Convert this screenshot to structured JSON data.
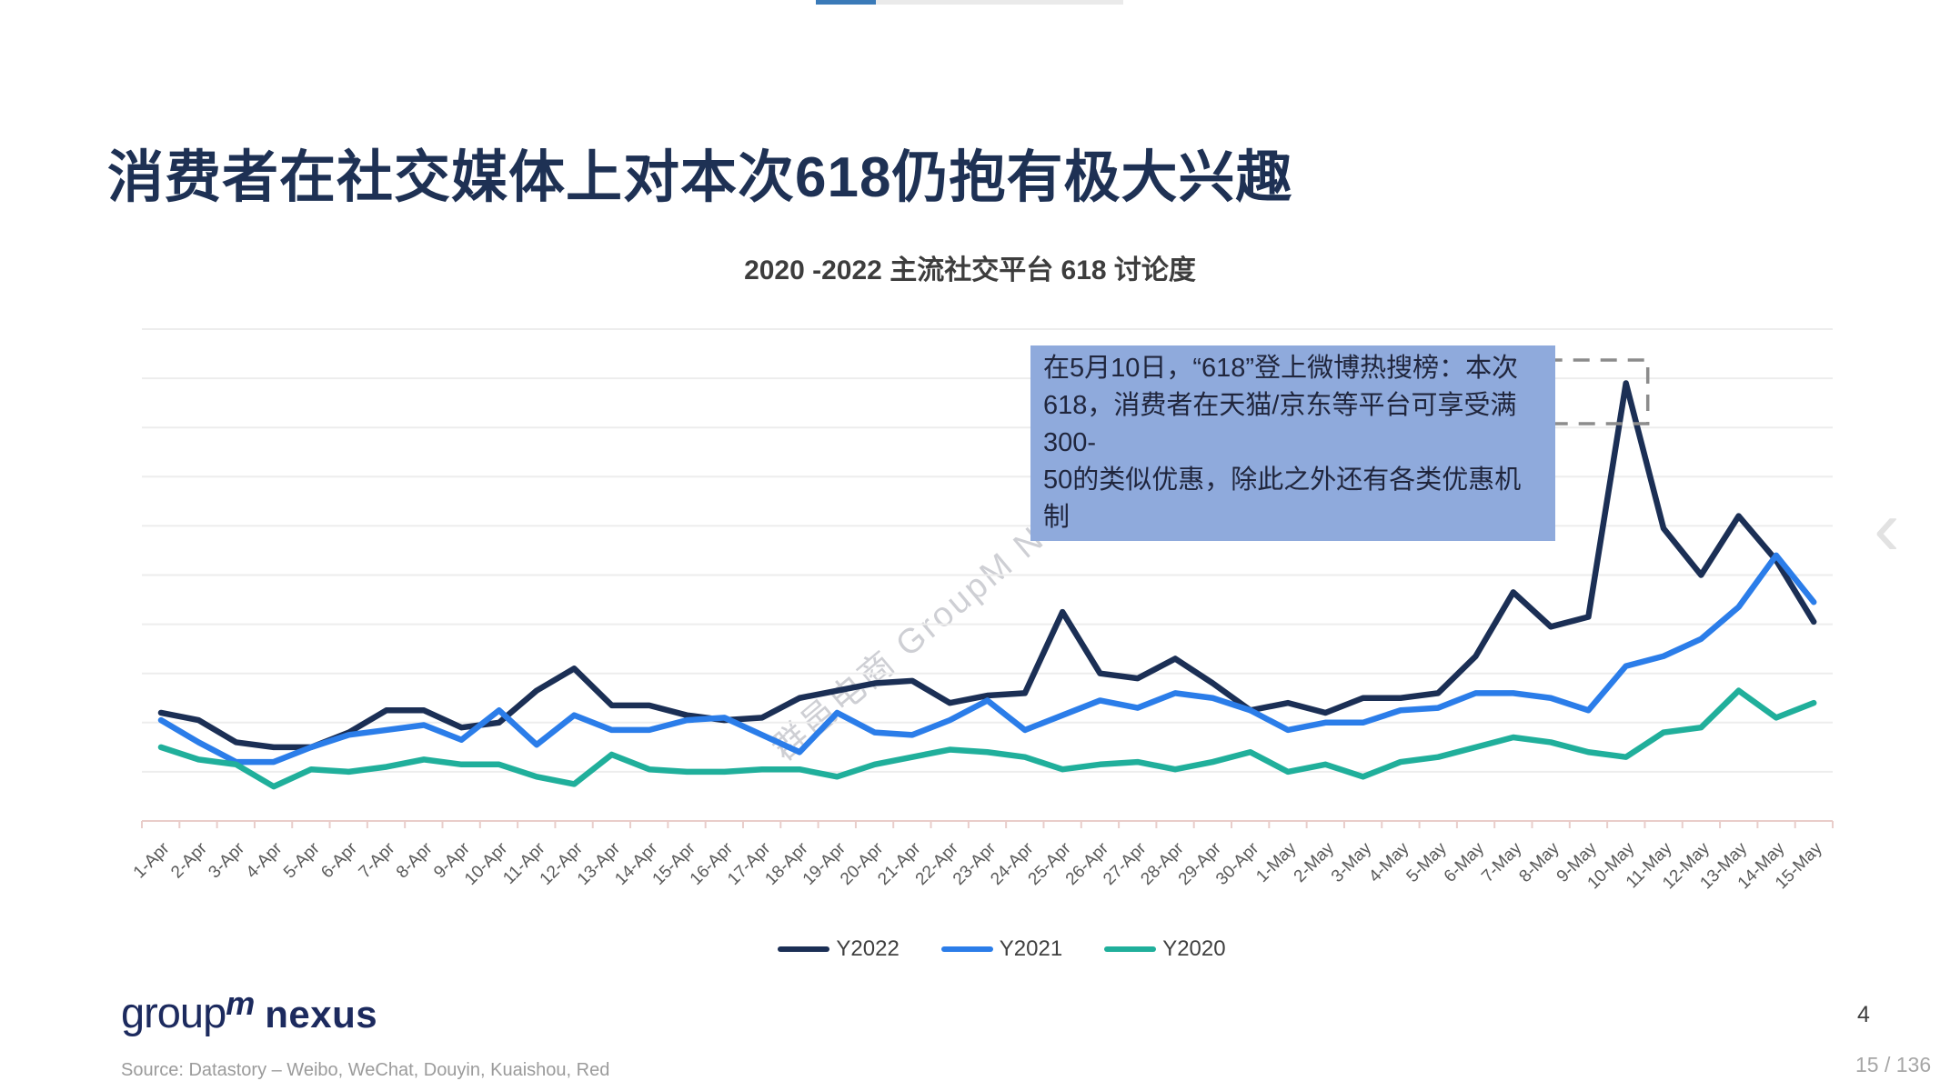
{
  "viewer": {
    "page_indicator": "15 / 136",
    "prev_arrow_glyph": "‹",
    "progress_fill_color": "#3a7ab8",
    "progress_track_color": "#eaeaea"
  },
  "slide": {
    "title": "消费者在社交媒体上对本次618仍抱有极大兴趣",
    "title_color": "#1e3154",
    "page_number": "4"
  },
  "chart_data": {
    "type": "line",
    "title": "2020 -2022 主流社交平台 618 讨论度",
    "xlabel": "",
    "ylabel": "",
    "ylim": [
      0,
      100
    ],
    "grid": true,
    "y_axis_labels_visible": false,
    "legend_position": "bottom",
    "categories": [
      "1-Apr",
      "2-Apr",
      "3-Apr",
      "4-Apr",
      "5-Apr",
      "6-Apr",
      "7-Apr",
      "8-Apr",
      "9-Apr",
      "10-Apr",
      "11-Apr",
      "12-Apr",
      "13-Apr",
      "14-Apr",
      "15-Apr",
      "16-Apr",
      "17-Apr",
      "18-Apr",
      "19-Apr",
      "20-Apr",
      "21-Apr",
      "22-Apr",
      "23-Apr",
      "24-Apr",
      "25-Apr",
      "26-Apr",
      "27-Apr",
      "28-Apr",
      "29-Apr",
      "30-Apr",
      "1-May",
      "2-May",
      "3-May",
      "4-May",
      "5-May",
      "6-May",
      "7-May",
      "8-May",
      "9-May",
      "10-May",
      "11-May",
      "12-May",
      "13-May",
      "14-May",
      "15-May"
    ],
    "series": [
      {
        "name": "Y2022",
        "color": "#1b2f55",
        "values": [
          22,
          20.5,
          16,
          15,
          15,
          18,
          22.5,
          22.5,
          19,
          20,
          26.5,
          31,
          23.5,
          23.5,
          21.5,
          20.5,
          21,
          25,
          26.5,
          28,
          28.5,
          24,
          25.5,
          26,
          42.5,
          30,
          29,
          33,
          28,
          22.5,
          24,
          22,
          25,
          25,
          26,
          33.5,
          46.5,
          39.5,
          41.5,
          89,
          59.5,
          50,
          62,
          53,
          40.5
        ]
      },
      {
        "name": "Y2021",
        "color": "#2b7de9",
        "values": [
          20.5,
          16,
          12,
          12,
          15,
          17.5,
          18.5,
          19.5,
          16.5,
          22.5,
          15.5,
          21.5,
          18.5,
          18.5,
          20.5,
          21,
          17.5,
          14,
          22,
          18,
          17.5,
          20.5,
          24.5,
          18.5,
          21.5,
          24.5,
          23,
          26,
          25,
          22.5,
          18.5,
          20,
          20,
          22.5,
          23,
          26,
          26,
          25,
          22.5,
          31.5,
          33.5,
          37,
          43.5,
          54,
          44.5
        ]
      },
      {
        "name": "Y2020",
        "color": "#20af9b",
        "values": [
          15,
          12.5,
          11.5,
          7,
          10.5,
          10,
          11,
          12.5,
          11.5,
          11.5,
          9,
          7.5,
          13.5,
          10.5,
          10,
          10,
          10.5,
          10.5,
          9,
          11.5,
          13,
          14.5,
          14,
          13,
          10.5,
          11.5,
          12,
          10.5,
          12,
          14,
          10,
          11.5,
          9,
          12,
          13,
          15,
          17,
          16,
          14,
          13,
          18,
          19,
          26.5,
          21,
          24
        ]
      }
    ],
    "highlight_box_date": "10-May"
  },
  "annotation": {
    "bg_color": "#8faadc",
    "lines": [
      "在5月10日，“618”登上微博热搜榜：本次",
      "618，消费者在天猫/京东等平台可享受满300-",
      "50的类似优惠，除此之外还有各类优惠机制"
    ],
    "text": "在5月10日，“618”登上微博热搜榜：本次618，消费者在天猫/京东等平台可享受满300-50的类似优惠，除此之外还有各类优惠机制"
  },
  "watermark": {
    "text": "群邑电商 GroupM Nexus"
  },
  "footer": {
    "logo_group": "group",
    "logo_m": "m",
    "logo_nexus": "nexus",
    "source": "Source: Datastory – Weibo, WeChat, Douyin, Kuaishou, Red"
  }
}
